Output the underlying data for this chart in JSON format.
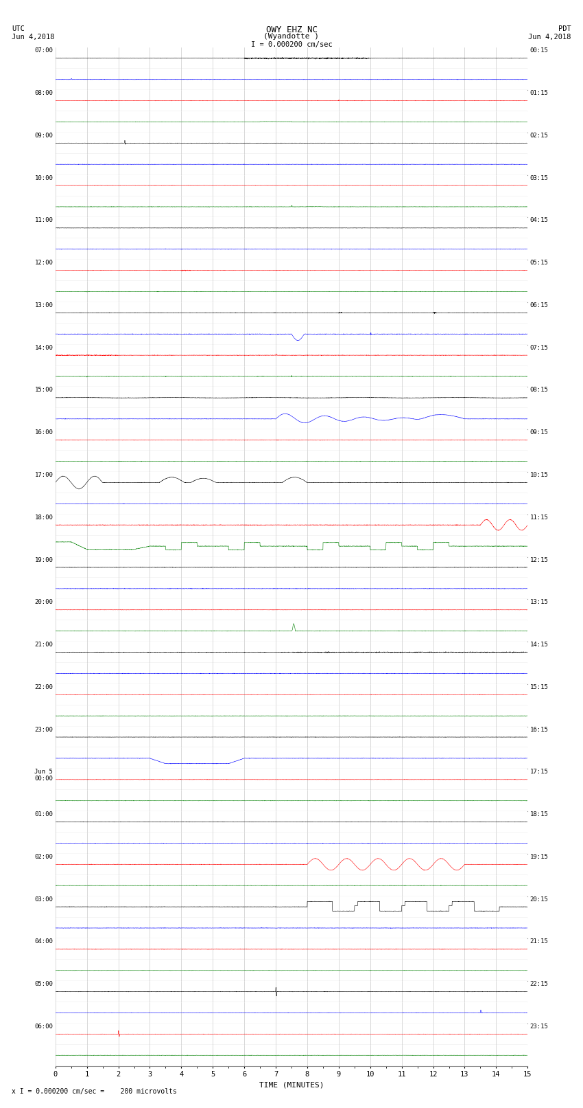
{
  "title_line1": "OWY EHZ NC",
  "title_line2": "(Wyandotte )",
  "scale_label": "I = 0.000200 cm/sec",
  "footer_label": "x I = 0.000200 cm/sec =    200 microvolts",
  "utc_label": "UTC\nJun 4,2018",
  "pdt_label": "PDT\nJun 4,2018",
  "xlabel": "TIME (MINUTES)",
  "left_times": [
    "07:00",
    "",
    "08:00",
    "",
    "09:00",
    "",
    "10:00",
    "",
    "11:00",
    "",
    "12:00",
    "",
    "13:00",
    "",
    "14:00",
    "",
    "15:00",
    "",
    "16:00",
    "",
    "17:00",
    "",
    "18:00",
    "",
    "19:00",
    "",
    "20:00",
    "",
    "21:00",
    "",
    "22:00",
    "",
    "23:00",
    "",
    "Jun 5\n00:00",
    "",
    "01:00",
    "",
    "02:00",
    "",
    "03:00",
    "",
    "04:00",
    "",
    "05:00",
    "",
    "06:00",
    ""
  ],
  "right_times": [
    "00:15",
    "",
    "01:15",
    "",
    "02:15",
    "",
    "03:15",
    "",
    "04:15",
    "",
    "05:15",
    "",
    "06:15",
    "",
    "07:15",
    "",
    "08:15",
    "",
    "09:15",
    "",
    "10:15",
    "",
    "11:15",
    "",
    "12:15",
    "",
    "13:15",
    "",
    "14:15",
    "",
    "15:15",
    "",
    "16:15",
    "",
    "17:15",
    "",
    "18:15",
    "",
    "19:15",
    "",
    "20:15",
    "",
    "21:15",
    "",
    "22:15",
    "",
    "23:15",
    ""
  ],
  "n_rows": 48,
  "n_minutes": 15,
  "bg_color": "#ffffff",
  "grid_color": "#aaaaaa",
  "trace_colors": [
    "black",
    "blue",
    "red",
    "green"
  ],
  "figsize": [
    8.5,
    16.13
  ],
  "seed": 42
}
